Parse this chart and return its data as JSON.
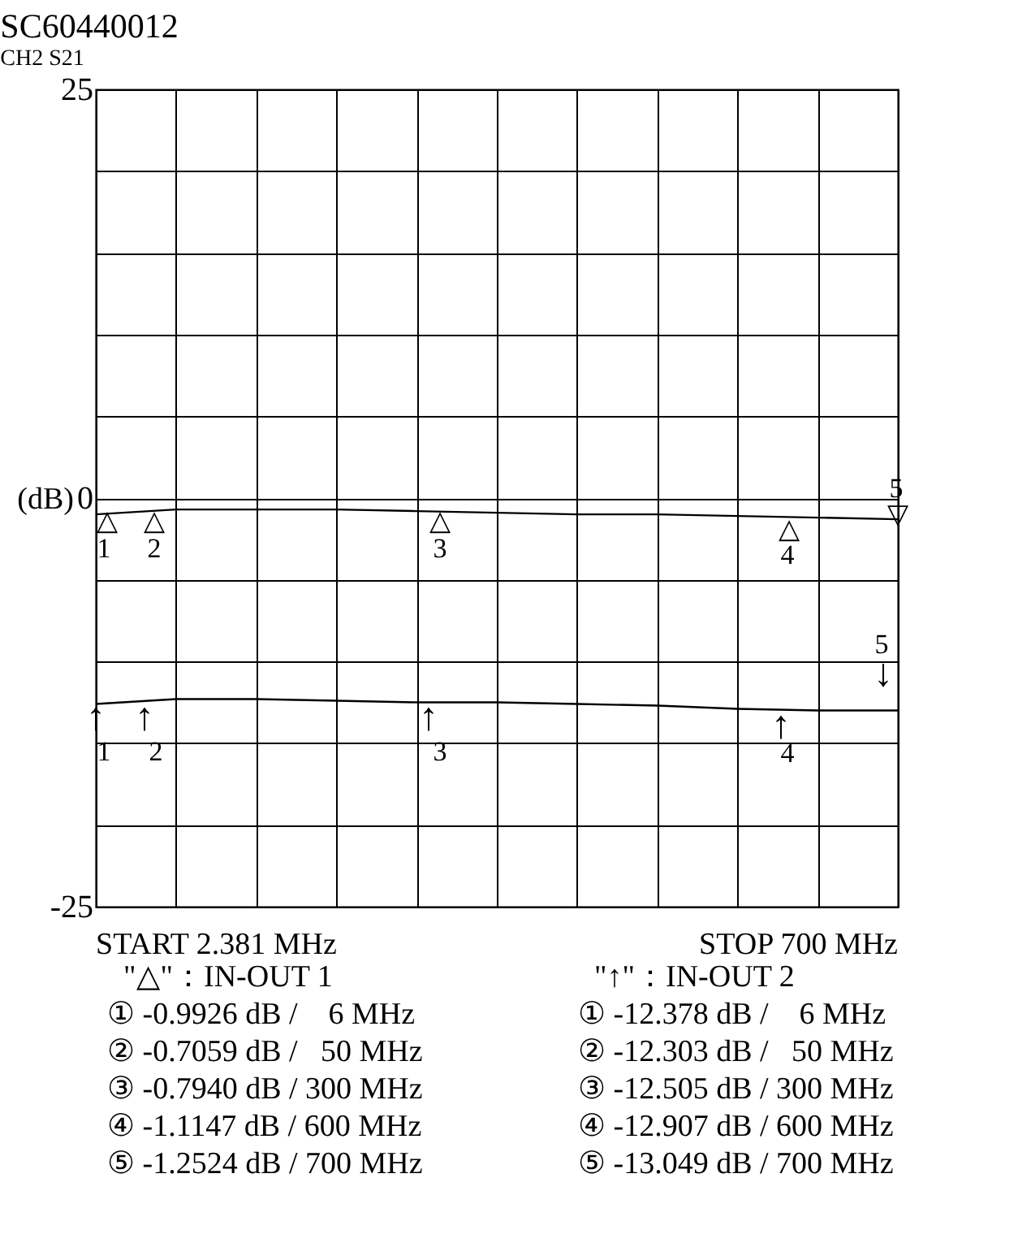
{
  "chart_data": {
    "type": "line",
    "title": "SC60440012",
    "subtitle": "CH2  S21",
    "ylabel": "(dB)",
    "categories": [
      null,
      null,
      null,
      null,
      null,
      null,
      null,
      null,
      null,
      null,
      null
    ],
    "series": [
      {
        "color": "#000000",
        "values": [
          -1.0,
          -0.7,
          -0.7,
          -0.7,
          -0.8,
          -0.9,
          -1.0,
          -1.0,
          -1.1,
          -1.2,
          -1.3
        ]
      },
      {
        "color": "#000000",
        "values": [
          -12.6,
          -12.3,
          -12.3,
          -12.4,
          -12.5,
          -12.5,
          -12.6,
          -12.7,
          -12.9,
          -13.0,
          -13.0
        ]
      }
    ],
    "ylim": [
      -25,
      25
    ],
    "yticks": [
      25,
      {
        "value": 20,
        "label": null
      },
      {
        "value": 15,
        "label": null
      },
      {
        "value": 10,
        "label": null
      },
      {
        "value": 5,
        "label": null
      },
      0,
      {
        "value": -5,
        "label": null
      },
      {
        "value": -10,
        "label": null
      },
      {
        "value": -15,
        "label": null
      },
      {
        "value": -20,
        "label": null
      },
      -25
    ],
    "grid": true,
    "tick_labels": "y",
    "marker": "none",
    "line_style": "solid",
    "annotations": [
      "△",
      "1",
      "△",
      "2",
      "△",
      "3",
      "△",
      "4",
      "▽",
      "5",
      "↑",
      "1",
      "↑",
      "2",
      "↑",
      "3",
      "↑",
      "4",
      "↓",
      "5",
      "START 2.381 MHz",
      "STOP 700 MHz",
      "\"△\"：IN-OUT 1",
      "\"↑\"：IN-OUT 2",
      "① -0.9926 dB /    6 MHz",
      "① -12.378 dB /    6 MHz",
      "② -0.7059 dB /   50 MHz",
      "② -12.303 dB /   50 MHz",
      "③ -0.7940 dB / 300 MHz",
      "③ -12.505 dB / 300 MHz",
      "④ -1.1147 dB / 600 MHz",
      "④ -12.907 dB / 600 MHz",
      "⑤ -1.2524 dB / 700 MHz",
      "⑤ -13.049 dB / 700 MHz"
    ]
  }
}
